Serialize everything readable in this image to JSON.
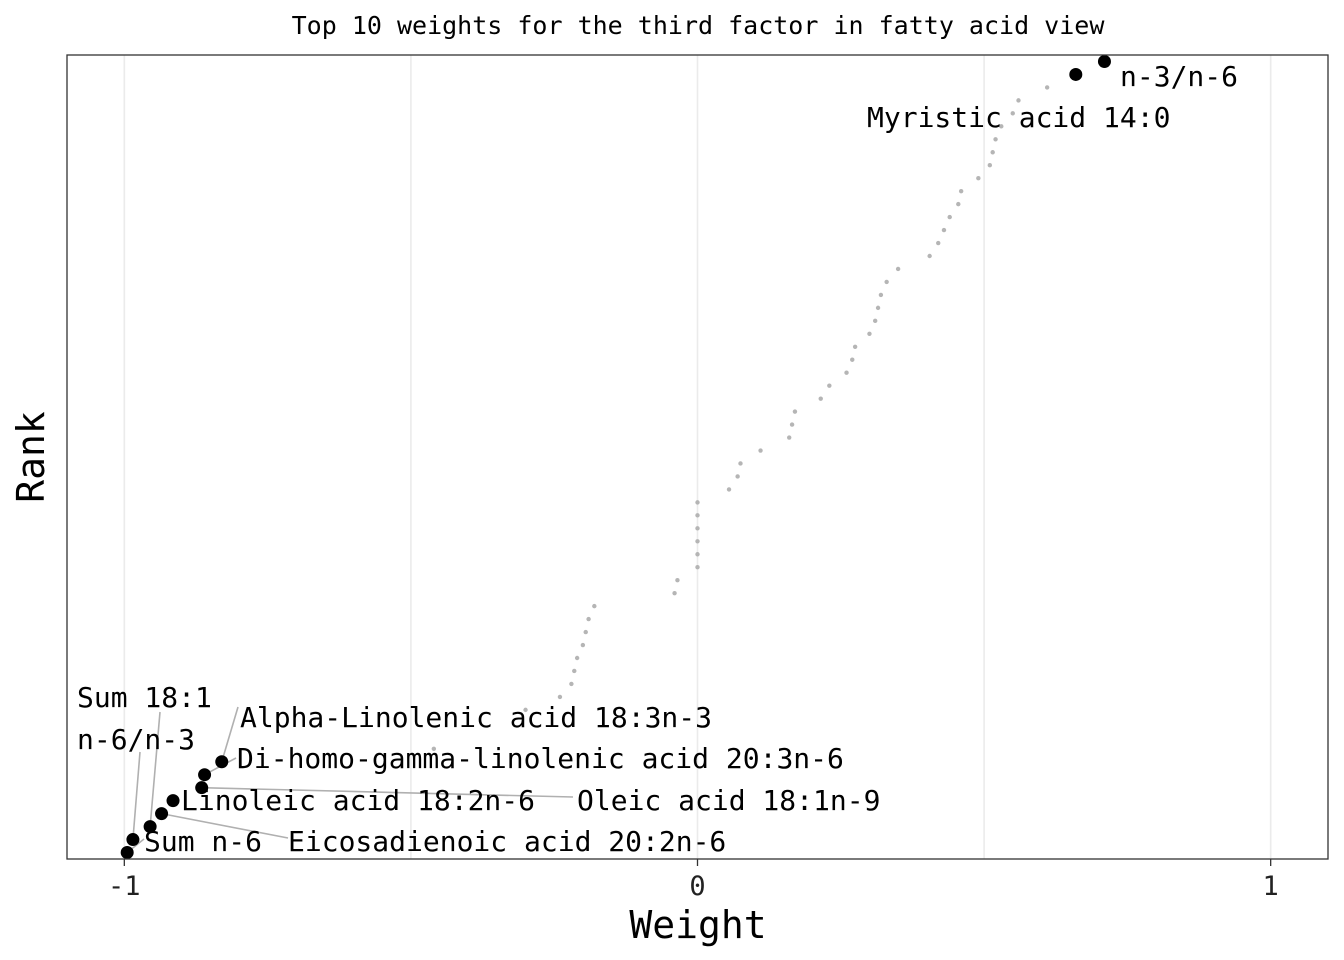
{
  "chart_data": {
    "type": "scatter",
    "title": "Top 10 weights for the third factor in fatty acid view",
    "xlabel": "Weight",
    "ylabel": "Rank",
    "xlim": [
      -1.1,
      1.1
    ],
    "ylim": [
      0.5,
      62.5
    ],
    "x_ticks": [
      {
        "value": -1,
        "label": "-1"
      },
      {
        "value": 0,
        "label": "0"
      },
      {
        "value": 1,
        "label": "1"
      }
    ],
    "grid": true,
    "legend": "none",
    "colors": {
      "top": "#000000",
      "background": "#b5b5b5",
      "leader": "#b0b0b0"
    },
    "background_points": [
      {
        "rank": 9,
        "weight": -0.46
      },
      {
        "rank": 12,
        "weight": -0.3
      },
      {
        "rank": 13,
        "weight": -0.24
      },
      {
        "rank": 14,
        "weight": -0.22
      },
      {
        "rank": 15,
        "weight": -0.215
      },
      {
        "rank": 16,
        "weight": -0.21
      },
      {
        "rank": 17,
        "weight": -0.2
      },
      {
        "rank": 18,
        "weight": -0.195
      },
      {
        "rank": 19,
        "weight": -0.19
      },
      {
        "rank": 20,
        "weight": -0.18
      },
      {
        "rank": 21,
        "weight": -0.04
      },
      {
        "rank": 22,
        "weight": -0.035
      },
      {
        "rank": 23,
        "weight": 0.0
      },
      {
        "rank": 24,
        "weight": 0.0
      },
      {
        "rank": 25,
        "weight": 0.0
      },
      {
        "rank": 26,
        "weight": 0.0
      },
      {
        "rank": 27,
        "weight": 0.0
      },
      {
        "rank": 28,
        "weight": 0.0
      },
      {
        "rank": 29,
        "weight": 0.055
      },
      {
        "rank": 30,
        "weight": 0.07
      },
      {
        "rank": 31,
        "weight": 0.075
      },
      {
        "rank": 32,
        "weight": 0.11
      },
      {
        "rank": 33,
        "weight": 0.16
      },
      {
        "rank": 34,
        "weight": 0.165
      },
      {
        "rank": 35,
        "weight": 0.17
      },
      {
        "rank": 36,
        "weight": 0.215
      },
      {
        "rank": 37,
        "weight": 0.23
      },
      {
        "rank": 38,
        "weight": 0.26
      },
      {
        "rank": 39,
        "weight": 0.27
      },
      {
        "rank": 40,
        "weight": 0.275
      },
      {
        "rank": 41,
        "weight": 0.3
      },
      {
        "rank": 42,
        "weight": 0.31
      },
      {
        "rank": 43,
        "weight": 0.315
      },
      {
        "rank": 44,
        "weight": 0.32
      },
      {
        "rank": 45,
        "weight": 0.33
      },
      {
        "rank": 46,
        "weight": 0.35
      },
      {
        "rank": 47,
        "weight": 0.405
      },
      {
        "rank": 48,
        "weight": 0.42
      },
      {
        "rank": 49,
        "weight": 0.43
      },
      {
        "rank": 50,
        "weight": 0.44
      },
      {
        "rank": 51,
        "weight": 0.455
      },
      {
        "rank": 52,
        "weight": 0.46
      },
      {
        "rank": 53,
        "weight": 0.49
      },
      {
        "rank": 54,
        "weight": 0.51
      },
      {
        "rank": 55,
        "weight": 0.515
      },
      {
        "rank": 56,
        "weight": 0.52
      },
      {
        "rank": 57,
        "weight": 0.53
      },
      {
        "rank": 58,
        "weight": 0.55
      },
      {
        "rank": 59,
        "weight": 0.56
      },
      {
        "rank": 60,
        "weight": 0.61
      }
    ],
    "top_points": [
      {
        "rank": 1,
        "weight": -0.995,
        "label": "Sum n-6"
      },
      {
        "rank": 2,
        "weight": -0.985,
        "label": "n-6/n-3"
      },
      {
        "rank": 3,
        "weight": -0.955,
        "label": "Sum 18:1"
      },
      {
        "rank": 4,
        "weight": -0.935,
        "label": "Eicosadienoic acid 20:2n-6"
      },
      {
        "rank": 5,
        "weight": -0.915,
        "label": "Linoleic acid 18:2n-6"
      },
      {
        "rank": 6,
        "weight": -0.865,
        "label": "Oleic acid 18:1n-9"
      },
      {
        "rank": 7,
        "weight": -0.86,
        "label": "Di-homo-gamma-linolenic acid 20:3n-6"
      },
      {
        "rank": 8,
        "weight": -0.83,
        "label": "Alpha-Linolenic acid 18:3n-3"
      },
      {
        "rank": 61,
        "weight": 0.66,
        "label": "Myristic acid 14:0"
      },
      {
        "rank": 62,
        "weight": 0.71,
        "label": "n-3/n-6"
      }
    ]
  }
}
